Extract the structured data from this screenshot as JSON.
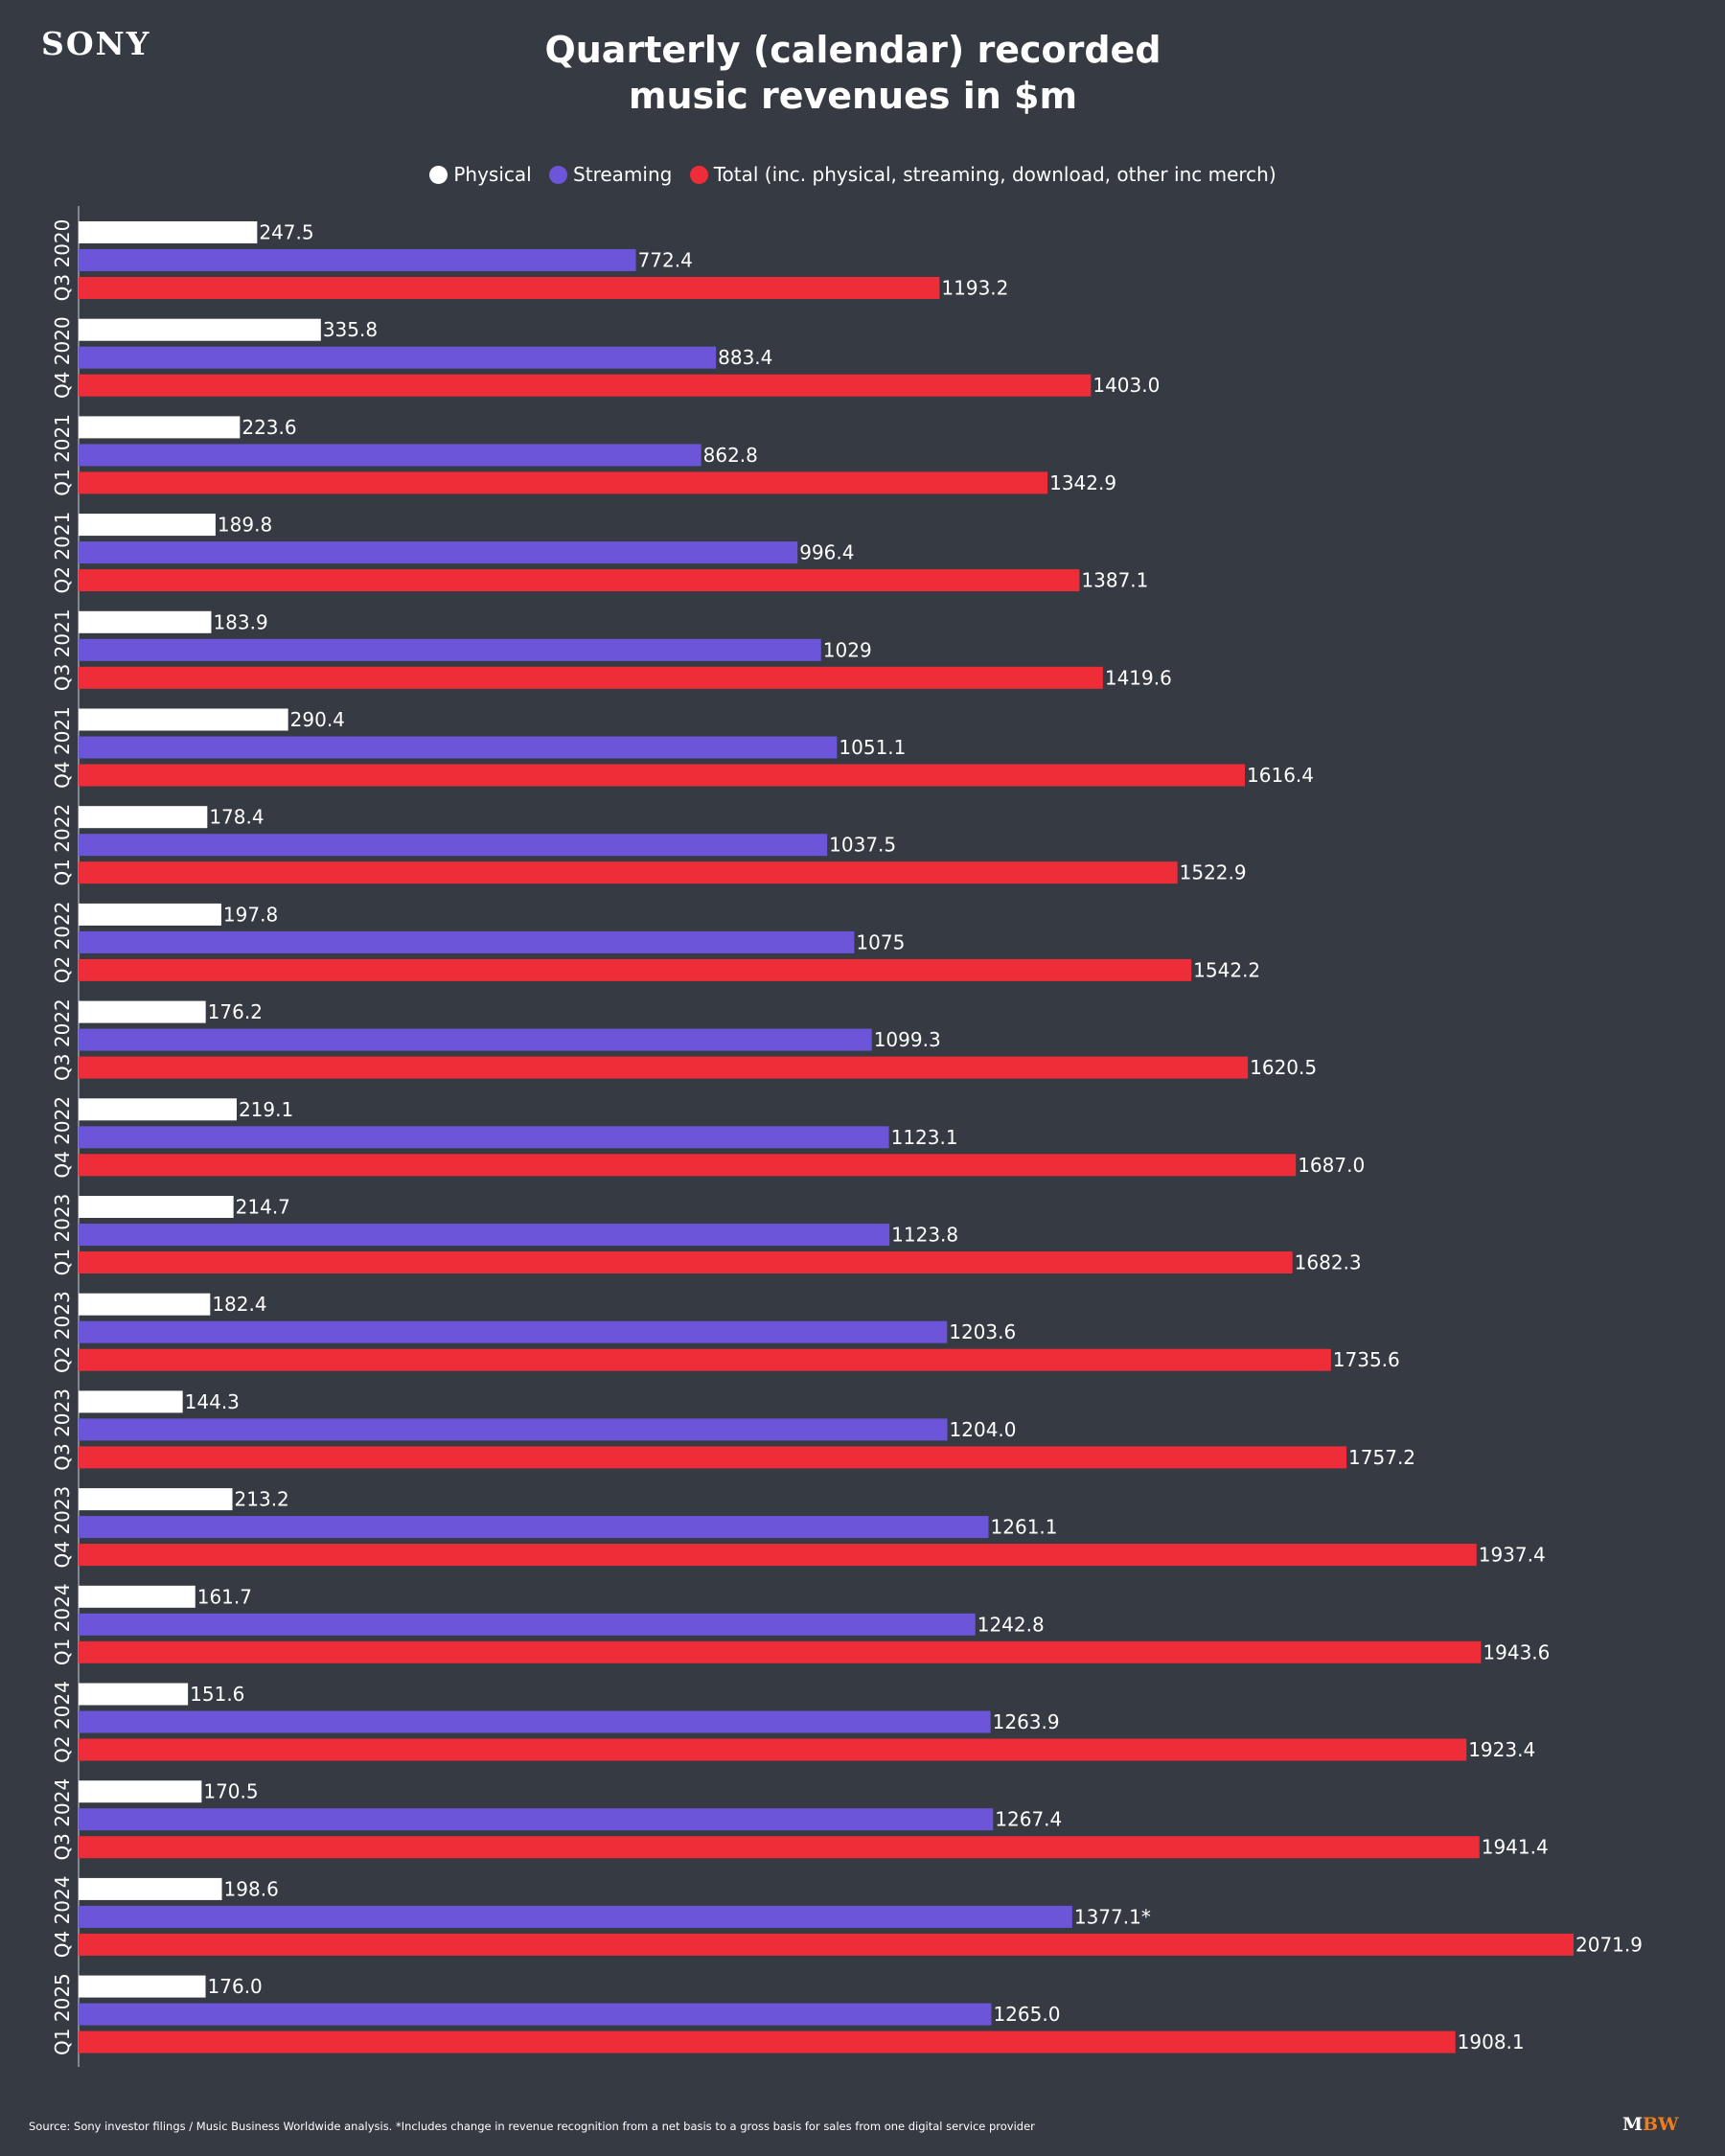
{
  "logo": "SONY",
  "brand_mark": {
    "m": "M",
    "bw": "BW"
  },
  "title_line1": "Quarterly (calendar) recorded",
  "title_line2": "music revenues in $m",
  "footer": "Source: Sony investor filings / Music Business Worldwide analysis. *Includes change in revenue recognition from a net basis to a gross basis for sales from one digital service provider",
  "colors": {
    "background": "#353a43",
    "physical": "#ffffff",
    "streaming": "#6c55d9",
    "total": "#ef2d38"
  },
  "chart_data": {
    "type": "bar",
    "orientation": "horizontal",
    "title": "Quarterly (calendar) recorded music revenues in $m",
    "legend_position": "top",
    "grid": false,
    "xlim": [
      0,
      2100
    ],
    "categories": [
      "Q3 2020",
      "Q4 2020",
      "Q1 2021",
      "Q2 2021",
      "Q3 2021",
      "Q4 2021",
      "Q1 2022",
      "Q2 2022",
      "Q3 2022",
      "Q4 2022",
      "Q1 2023",
      "Q2 2023",
      "Q3 2023",
      "Q4 2023",
      "Q1 2024",
      "Q2 2024",
      "Q3 2024",
      "Q4 2024",
      "Q1 2025"
    ],
    "series": [
      {
        "name": "Physical",
        "color": "#ffffff",
        "values": [
          247.5,
          335.8,
          223.6,
          189.8,
          183.9,
          290.4,
          178.4,
          197.8,
          176.2,
          219.1,
          214.7,
          182.4,
          144.3,
          213.2,
          161.7,
          151.6,
          170.5,
          198.6,
          176.0
        ],
        "labels": [
          "247.5",
          "335.8",
          "223.6",
          "189.8",
          "183.9",
          "290.4",
          "178.4",
          "197.8",
          "176.2",
          "219.1",
          "214.7",
          "182.4",
          "144.3",
          "213.2",
          "161.7",
          "151.6",
          "170.5",
          "198.6",
          "176.0"
        ]
      },
      {
        "name": "Streaming",
        "color": "#6c55d9",
        "values": [
          772.4,
          883.4,
          862.8,
          996.4,
          1029,
          1051.1,
          1037.5,
          1075,
          1099.3,
          1123.1,
          1123.8,
          1203.6,
          1204.0,
          1261.1,
          1242.8,
          1263.9,
          1267.4,
          1377.1,
          1265.0
        ],
        "labels": [
          "772.4",
          "883.4",
          "862.8",
          "996.4",
          "1029",
          "1051.1",
          "1037.5",
          "1075",
          "1099.3",
          "1123.1",
          "1123.8",
          "1203.6",
          "1204.0",
          "1261.1",
          "1242.8",
          "1263.9",
          "1267.4",
          "1377.1*",
          "1265.0"
        ]
      },
      {
        "name": "Total (inc. physical, streaming, download, other inc merch)",
        "color": "#ef2d38",
        "values": [
          1193.2,
          1403.0,
          1342.9,
          1387.1,
          1419.6,
          1616.4,
          1522.9,
          1542.2,
          1620.5,
          1687.0,
          1682.3,
          1735.6,
          1757.2,
          1937.4,
          1943.6,
          1923.4,
          1941.4,
          2071.9,
          1908.1
        ],
        "labels": [
          "1193.2",
          "1403.0",
          "1342.9",
          "1387.1",
          "1419.6",
          "1616.4",
          "1522.9",
          "1542.2",
          "1620.5",
          "1687.0",
          "1682.3",
          "1735.6",
          "1757.2",
          "1937.4",
          "1943.6",
          "1923.4",
          "1941.4",
          "2071.9",
          "1908.1"
        ]
      }
    ]
  }
}
